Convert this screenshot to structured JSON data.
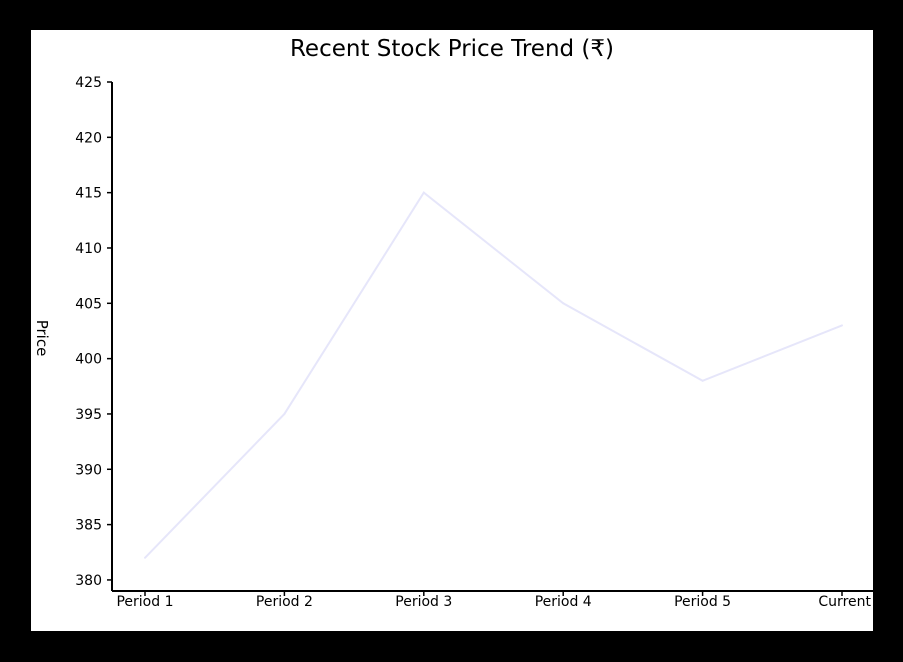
{
  "chart_data": {
    "type": "line",
    "title": "Recent Stock Price Trend (₹)",
    "xlabel": "",
    "ylabel": "Price",
    "categories": [
      "Period 1",
      "Period 2",
      "Period 3",
      "Period 4",
      "Period 5",
      "Current"
    ],
    "series": [
      {
        "values": [
          382,
          395,
          415,
          405,
          398,
          403
        ],
        "color": "#e6e6fa"
      }
    ],
    "ylim": [
      379,
      425
    ],
    "yticks": [
      380,
      385,
      390,
      395,
      400,
      405,
      410,
      415,
      420,
      425
    ],
    "grid": false,
    "legend": "none"
  }
}
